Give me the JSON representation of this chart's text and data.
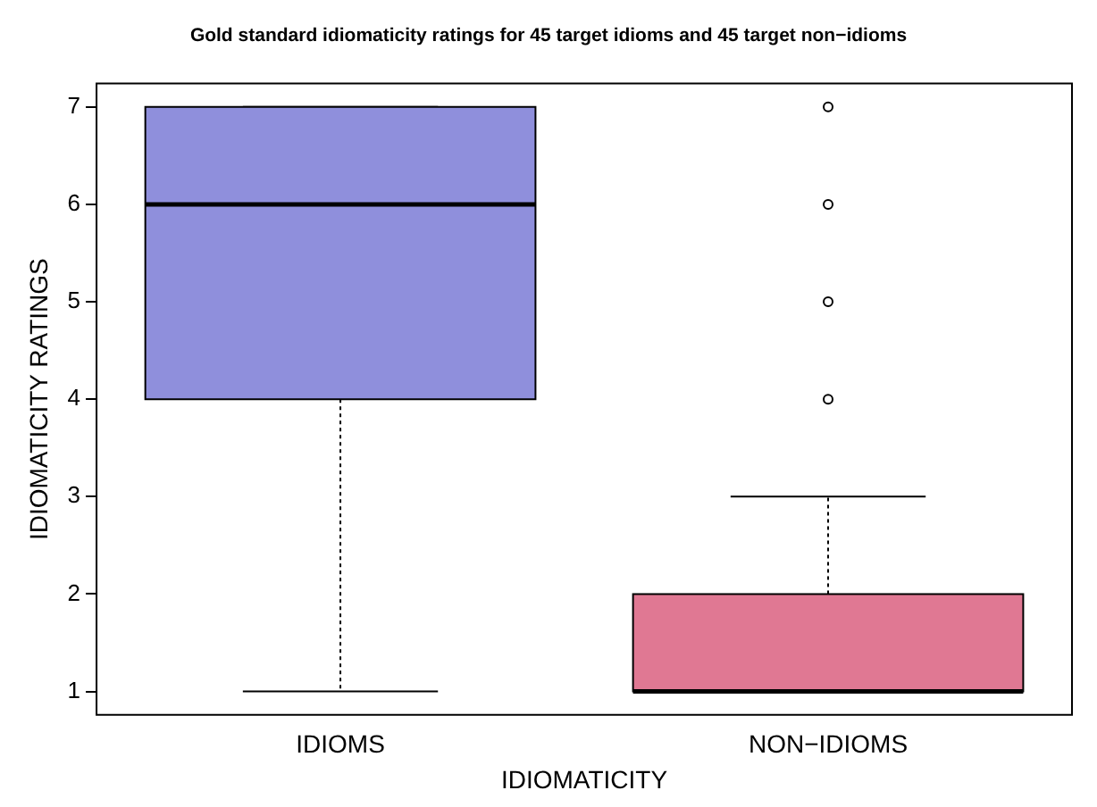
{
  "chart_data": {
    "type": "box",
    "title": "Gold standard idiomaticity ratings for 45 target idioms and 45 target non−idioms",
    "xlabel": "IDIOMATICITY",
    "ylabel": "IDIOMATICITY RATINGS",
    "categories": [
      "IDIOMS",
      "NON−IDIOMS"
    ],
    "colors": [
      "#8f8fdc",
      "#e07893"
    ],
    "boxes": [
      {
        "low": 1,
        "q1": 4,
        "median": 6,
        "q3": 7,
        "high": 7
      },
      {
        "low": 1,
        "q1": 1,
        "median": 1,
        "q3": 2,
        "high": 3,
        "outliers": [
          4,
          5,
          6,
          7
        ]
      }
    ],
    "ylim": [
      0.76,
      7.24
    ],
    "yticks": [
      1,
      2,
      3,
      4,
      5,
      6,
      7
    ],
    "grid": false,
    "legend": false,
    "marker": "circle"
  }
}
